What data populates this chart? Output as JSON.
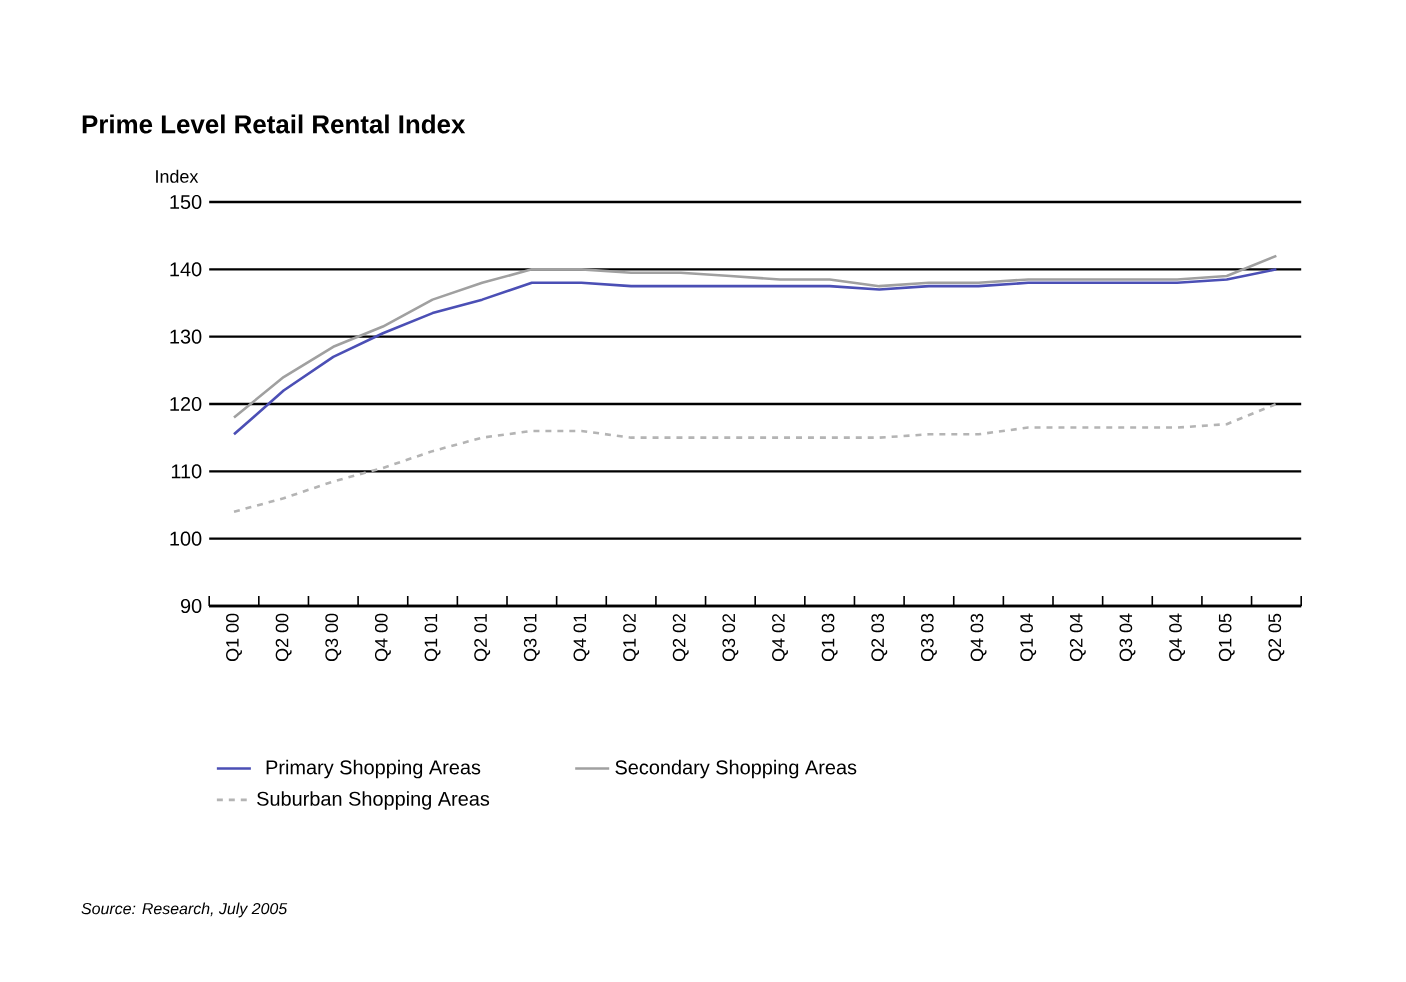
{
  "chart_data": {
    "type": "line",
    "title": "Prime Level Retail Rental Index",
    "ylabel": "Index",
    "categories": [
      "Q1 00",
      "Q2 00",
      "Q3 00",
      "Q4 00",
      "Q1 01",
      "Q2 01",
      "Q3 01",
      "Q4 01",
      "Q1 02",
      "Q2 02",
      "Q3 02",
      "Q4 02",
      "Q1 03",
      "Q2 03",
      "Q3 03",
      "Q4 03",
      "Q1 04",
      "Q2 04",
      "Q3 04",
      "Q4 04",
      "Q1 05",
      "Q2 05"
    ],
    "series": [
      {
        "name": "Primary Shopping Areas",
        "color": "#4b4fb5",
        "line_style": "solid",
        "values": [
          115.5,
          122,
          127,
          130.5,
          133.5,
          135.5,
          138,
          138,
          137.5,
          137.5,
          137.5,
          137.5,
          137.5,
          137,
          137.5,
          137.5,
          138,
          138,
          138,
          138,
          138.5,
          140
        ]
      },
      {
        "name": "Secondary Shopping Areas",
        "color": "#a0a0a0",
        "line_style": "solid",
        "values": [
          118,
          124,
          128.5,
          131.5,
          135.5,
          138,
          140,
          140,
          139.5,
          139.5,
          139,
          138.5,
          138.5,
          137.5,
          138,
          138,
          138.5,
          138.5,
          138.5,
          138.5,
          139,
          142
        ]
      },
      {
        "name": "Suburban Shopping Areas",
        "color": "#b4b4b4",
        "line_style": "dashed",
        "values": [
          104,
          106,
          108.5,
          110.5,
          113,
          115,
          116,
          116,
          115,
          115,
          115,
          115,
          115,
          115,
          115.5,
          115.5,
          116.5,
          116.5,
          116.5,
          116.5,
          117,
          120
        ]
      }
    ],
    "ylim": [
      90,
      150
    ],
    "yticks": [
      90,
      100,
      110,
      120,
      130,
      140,
      150
    ],
    "grid": "y",
    "legend": "bottom",
    "marker": "none",
    "annotations": [
      "*Source: Research, July 2005*"
    ]
  }
}
